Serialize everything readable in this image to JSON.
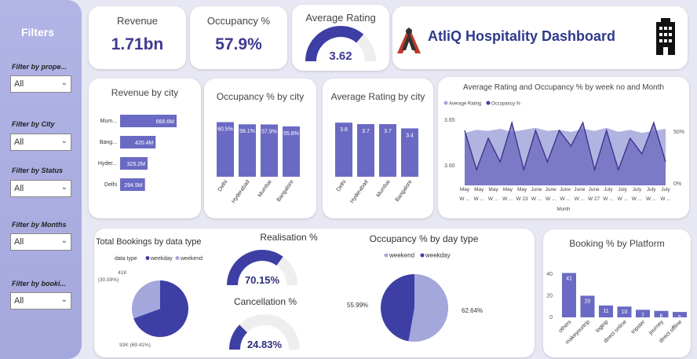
{
  "sidebar": {
    "title": "Filters",
    "filters": [
      {
        "label": "Filter by prope...",
        "value": "All"
      },
      {
        "label": "Filter by City",
        "value": "All"
      },
      {
        "label": "Filter by Status",
        "value": "All"
      },
      {
        "label": "Filter by Months",
        "value": "All"
      },
      {
        "label": "Filter by booki...",
        "value": "All"
      }
    ]
  },
  "kpis": {
    "revenue": {
      "title": "Revenue",
      "value": "1.71bn"
    },
    "occupancy": {
      "title": "Occupancy %",
      "value": "57.9%"
    },
    "rating": {
      "title": "Average Rating",
      "value": "3.62",
      "fraction": 0.724
    }
  },
  "header": {
    "title": "AtliQ Hospitality Dashboard"
  },
  "colors": {
    "primary": "#3d3fa5",
    "bar": "#6a6ac4",
    "light": "#a3a7db",
    "gaugeBg": "#eeeeee"
  },
  "revenue_by_city": {
    "title": "Revenue by city",
    "categories": [
      "Mum...",
      "Bang...",
      "Hyder...",
      "Delhi"
    ],
    "labels": [
      "668.6M",
      "420.4M",
      "325.2M",
      "294.5M"
    ],
    "values": [
      668.6,
      420.4,
      325.2,
      294.5
    ]
  },
  "occupancy_by_city": {
    "title": "Occupancy % by city",
    "categories": [
      "Delhi",
      "Hyderabad",
      "Mumbai",
      "Bangalore"
    ],
    "labels": [
      "60.5%",
      "58.1%",
      "57.9%",
      "55.8%"
    ],
    "values": [
      60.5,
      58.1,
      57.9,
      55.8
    ]
  },
  "rating_by_city": {
    "title": "Average Rating by city",
    "categories": [
      "Delhi",
      "Hyderabad",
      "Mumbai",
      "Bangalore"
    ],
    "labels": [
      "3.8",
      "3.7",
      "3.7",
      "3.4"
    ],
    "values": [
      3.8,
      3.7,
      3.7,
      3.4
    ]
  },
  "weekly": {
    "title": "Average Rating and Occupancy % by week no and Month",
    "legend": [
      "Average Rating",
      "Occupancy %"
    ],
    "y_left_ticks": [
      "3.65",
      "3.60"
    ],
    "y_right_ticks": [
      "50%",
      "0%"
    ],
    "x_top": [
      "May",
      "May",
      "May",
      "May",
      "May",
      "June",
      "June",
      "June",
      "June",
      "June",
      "July",
      "July",
      "July",
      "July",
      "July"
    ],
    "x_bottom": [
      "W ...",
      "W ...",
      "W ...",
      "W ...",
      "W 23",
      "W ...",
      "W ...",
      "W ...",
      "W ...",
      "W 27",
      "W ...",
      "W ...",
      "W ...",
      "W ...",
      "W ..."
    ],
    "xlabel": "Month",
    "rating": [
      3.65,
      3.6,
      3.64,
      3.61,
      3.66,
      3.6,
      3.65,
      3.61,
      3.65,
      3.63,
      3.66,
      3.6,
      3.65,
      3.6,
      3.64,
      3.62,
      3.66,
      3.61
    ],
    "occupancy": [
      52,
      55,
      54,
      56,
      53,
      55,
      57,
      54,
      55,
      53,
      56,
      54,
      57,
      53,
      55,
      52,
      54,
      56
    ]
  },
  "bookings": {
    "title": "Total Bookings by data type",
    "legend_title": "data type",
    "legend": [
      "weekday",
      "weekend"
    ],
    "weekday_label": "93K (69.41%)",
    "weekend_label_1": "41K",
    "weekend_label_2": "(30.59%)",
    "weekday_pct": 69.41
  },
  "realisation": {
    "title": "Realisation %",
    "value": "70.15%",
    "fraction": 0.7015
  },
  "cancellation": {
    "title": "Cancellation %",
    "value": "24.83%",
    "fraction": 0.2483
  },
  "daytype": {
    "title": "Occupancy % by day type",
    "legend": [
      "weekend",
      "weekday"
    ],
    "left_label": "55.99%",
    "right_label": "62.64%",
    "weekend": 62.64,
    "weekday": 55.99
  },
  "platform": {
    "title": "Booking % by Platform",
    "y_ticks": [
      "40",
      "20",
      "0"
    ],
    "categories": [
      "others",
      "makeyourtrip",
      "logtrip",
      "direct online",
      "tripster",
      "journey",
      "direct offline"
    ],
    "labels": [
      "41",
      "20",
      "11",
      "10",
      "7",
      "6",
      "5"
    ],
    "values": [
      41,
      20,
      11,
      10,
      7,
      6,
      5
    ]
  }
}
